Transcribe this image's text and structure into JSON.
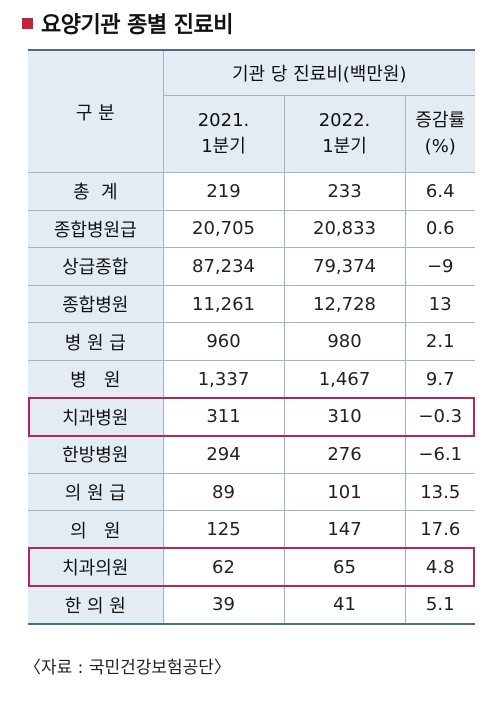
{
  "title": "요양기관 종별 진료비",
  "table": {
    "header_category": "구 분",
    "header_group": "기관 당 진료비(백만원)",
    "col_2021": "2021.\n1분기",
    "col_2022": "2022.\n1분기",
    "col_change": "증감률\n(%)",
    "rows": [
      {
        "category": "총  계",
        "v2021": "219",
        "v2022": "233",
        "change": "6.4",
        "highlight": false
      },
      {
        "category": "종합병원급",
        "v2021": "20,705",
        "v2022": "20,833",
        "change": "0.6",
        "highlight": false
      },
      {
        "category": "상급종합",
        "v2021": "87,234",
        "v2022": "79,374",
        "change": "−9",
        "highlight": false
      },
      {
        "category": "종합병원",
        "v2021": "11,261",
        "v2022": "12,728",
        "change": "13",
        "highlight": false
      },
      {
        "category": "병 원 급",
        "v2021": "960",
        "v2022": "980",
        "change": "2.1",
        "highlight": false
      },
      {
        "category": "병   원",
        "v2021": "1,337",
        "v2022": "1,467",
        "change": "9.7",
        "highlight": false
      },
      {
        "category": "치과병원",
        "v2021": "311",
        "v2022": "310",
        "change": "−0.3",
        "highlight": true
      },
      {
        "category": "한방병원",
        "v2021": "294",
        "v2022": "276",
        "change": "−6.1",
        "highlight": false
      },
      {
        "category": "의 원 급",
        "v2021": "89",
        "v2022": "101",
        "change": "13.5",
        "highlight": false
      },
      {
        "category": "의   원",
        "v2021": "125",
        "v2022": "147",
        "change": "17.6",
        "highlight": false
      },
      {
        "category": "치과의원",
        "v2021": "62",
        "v2022": "65",
        "change": "4.8",
        "highlight": true
      },
      {
        "category": "한 의 원",
        "v2021": "39",
        "v2022": "41",
        "change": "5.1",
        "highlight": false
      }
    ]
  },
  "source": "〈자료 : 국민건강보험공단〉",
  "colors": {
    "accent": "#c4223f",
    "header_bg": "#e3ecf3",
    "highlight_border": "#b0285b"
  }
}
